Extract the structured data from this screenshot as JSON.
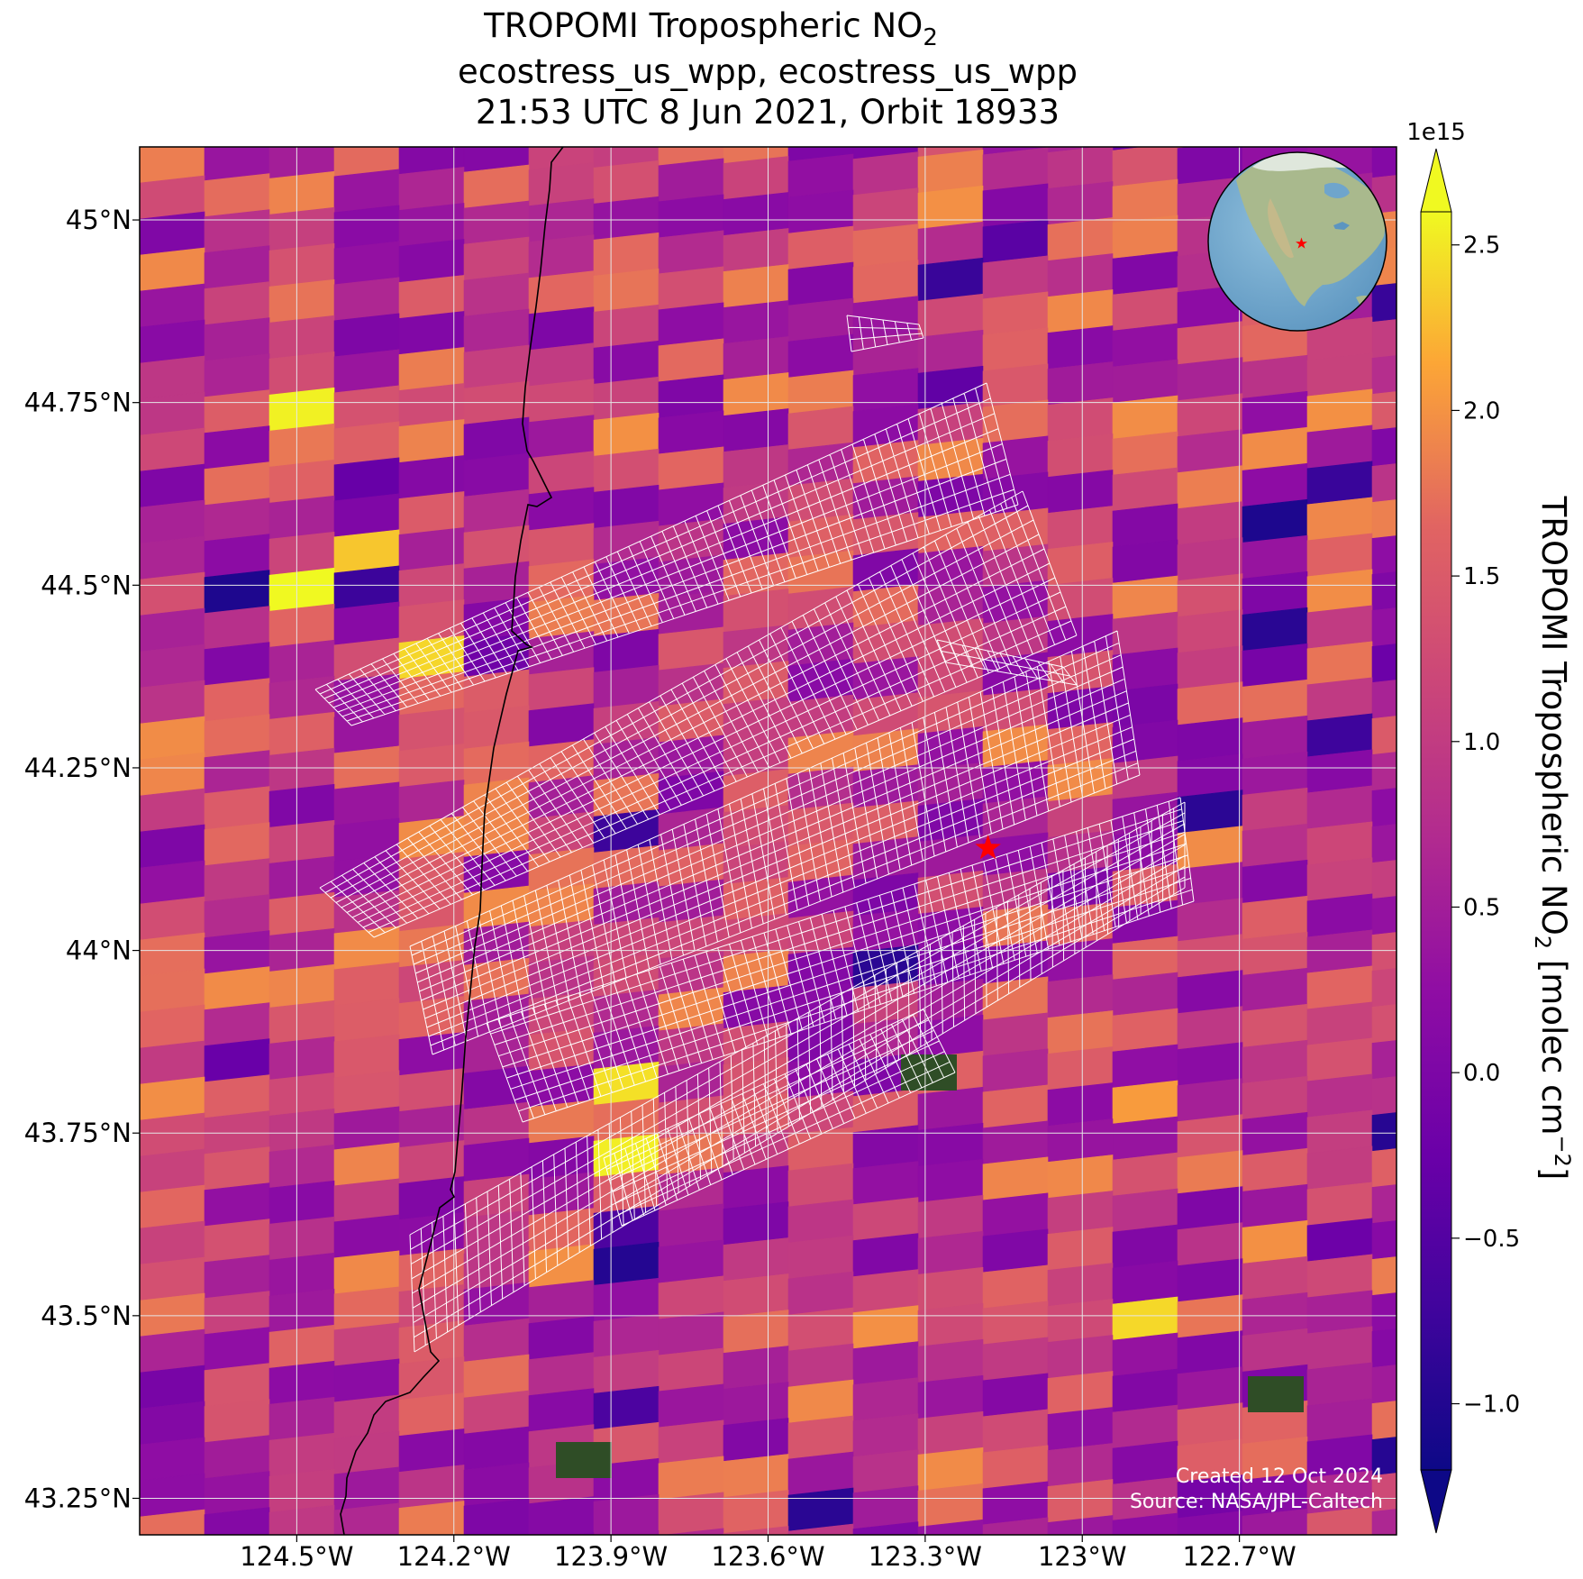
{
  "chart_data": {
    "type": "heatmap",
    "title_lines": [
      "TROPOMI Tropospheric NO",
      "ecostress_us_wpp, ecostress_us_wpp",
      "21:53 UTC 8 Jun 2021, Orbit 18933"
    ],
    "title_subscript": "2",
    "colorbar": {
      "label": "TROPOMI Tropospheric NO",
      "label_subscript": "2",
      "label_units": " [molec cm",
      "label_units_exp": "−2",
      "label_units_end": "]",
      "exponent_label": "1e15",
      "ticks": [
        -1.0,
        -0.5,
        0.0,
        0.5,
        1.0,
        1.5,
        2.0,
        2.5
      ],
      "tick_labels": [
        "−1.0",
        "−0.5",
        "0.0",
        "0.5",
        "1.0",
        "1.5",
        "2.0",
        "2.5"
      ],
      "range": [
        -1.2,
        2.6
      ],
      "colormap": "plasma",
      "extend": "both"
    },
    "xaxis": {
      "ticks": [
        -124.5,
        -124.2,
        -123.9,
        -123.6,
        -123.3,
        -123.0,
        -122.7
      ],
      "tick_labels": [
        "124.5°W",
        "124.2°W",
        "123.9°W",
        "123.6°W",
        "123.3°W",
        "123°W",
        "122.7°W"
      ],
      "range": [
        -124.8,
        -122.4
      ]
    },
    "yaxis": {
      "ticks": [
        45.0,
        44.75,
        44.5,
        44.25,
        44.0,
        43.75,
        43.5,
        43.25
      ],
      "tick_labels": [
        "45°N",
        "44.75°N",
        "44.5°N",
        "44.25°N",
        "44°N",
        "43.75°N",
        "43.5°N",
        "43.25°N"
      ],
      "range": [
        43.2,
        45.1
      ]
    },
    "grid": true,
    "marker": {
      "type": "star",
      "lon": -123.18,
      "lat": 44.14,
      "color": "#ff0000"
    },
    "inset": {
      "type": "globe",
      "position": "top-right"
    },
    "colors": {
      "star": "#ff0000",
      "coast": "#000000",
      "swath": "#ffffff",
      "grid": "#dddddd"
    }
  },
  "credits": {
    "created": "Created 12 Oct 2024",
    "source": "Source: NASA/JPL-Caltech"
  }
}
